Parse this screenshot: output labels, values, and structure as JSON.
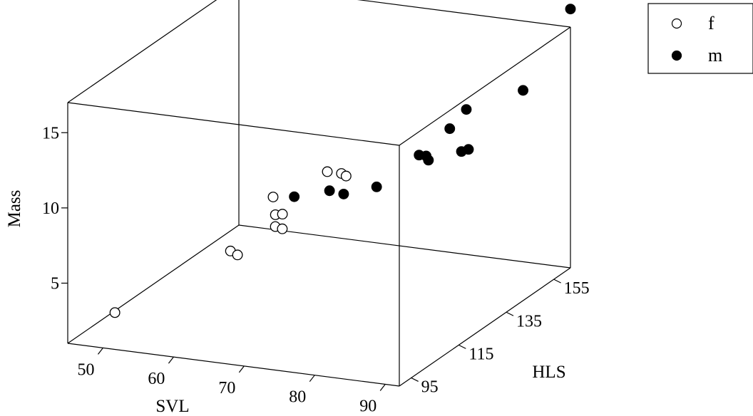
{
  "chart_data": {
    "type": "scatter",
    "projection": "3d",
    "axes": {
      "x": {
        "label": "SVL",
        "ticks": [
          50,
          60,
          70,
          80,
          90
        ],
        "range": [
          45,
          92
        ]
      },
      "y": {
        "label": "HLS",
        "ticks": [
          95,
          115,
          135,
          155
        ],
        "range": [
          90,
          162
        ]
      },
      "z": {
        "label": "Mass",
        "ticks": [
          5,
          10,
          15
        ],
        "range": [
          1,
          17
        ]
      }
    },
    "grid": false,
    "legend": {
      "position": "top-right"
    },
    "series": [
      {
        "name": "f",
        "marker": "open-circle",
        "points": [
          {
            "x": 50,
            "y": 95,
            "z": 2.8
          },
          {
            "x": 62,
            "y": 108,
            "z": 6.2
          },
          {
            "x": 63,
            "y": 108,
            "z": 6.0
          },
          {
            "x": 64,
            "y": 120,
            "z": 8.6
          },
          {
            "x": 65,
            "y": 118,
            "z": 7.7
          },
          {
            "x": 66,
            "y": 118,
            "z": 7.8
          },
          {
            "x": 66,
            "y": 115,
            "z": 7.3
          },
          {
            "x": 68,
            "y": 112,
            "z": 7.6
          },
          {
            "x": 70,
            "y": 125,
            "z": 10.1
          },
          {
            "x": 72,
            "y": 125,
            "z": 10.1
          },
          {
            "x": 73,
            "y": 124,
            "z": 10.1
          }
        ]
      },
      {
        "name": "m",
        "marker": "filled-circle",
        "points": [
          {
            "x": 67,
            "y": 120,
            "z": 8.8
          },
          {
            "x": 72,
            "y": 120,
            "z": 9.5
          },
          {
            "x": 74,
            "y": 120,
            "z": 9.4
          },
          {
            "x": 78,
            "y": 122,
            "z": 9.9
          },
          {
            "x": 82,
            "y": 128,
            "z": 11.6
          },
          {
            "x": 83,
            "y": 128,
            "z": 11.6
          },
          {
            "x": 84,
            "y": 126,
            "z": 11.6
          },
          {
            "x": 85,
            "y": 132,
            "z": 13.1
          },
          {
            "x": 86,
            "y": 136,
            "z": 14.0
          },
          {
            "x": 88,
            "y": 128,
            "z": 12.2
          },
          {
            "x": 89,
            "y": 128,
            "z": 12.4
          },
          {
            "x": 90,
            "y": 148,
            "z": 14.2
          },
          {
            "x": 92,
            "y": 162,
            "z": 18.2
          }
        ]
      }
    ]
  }
}
